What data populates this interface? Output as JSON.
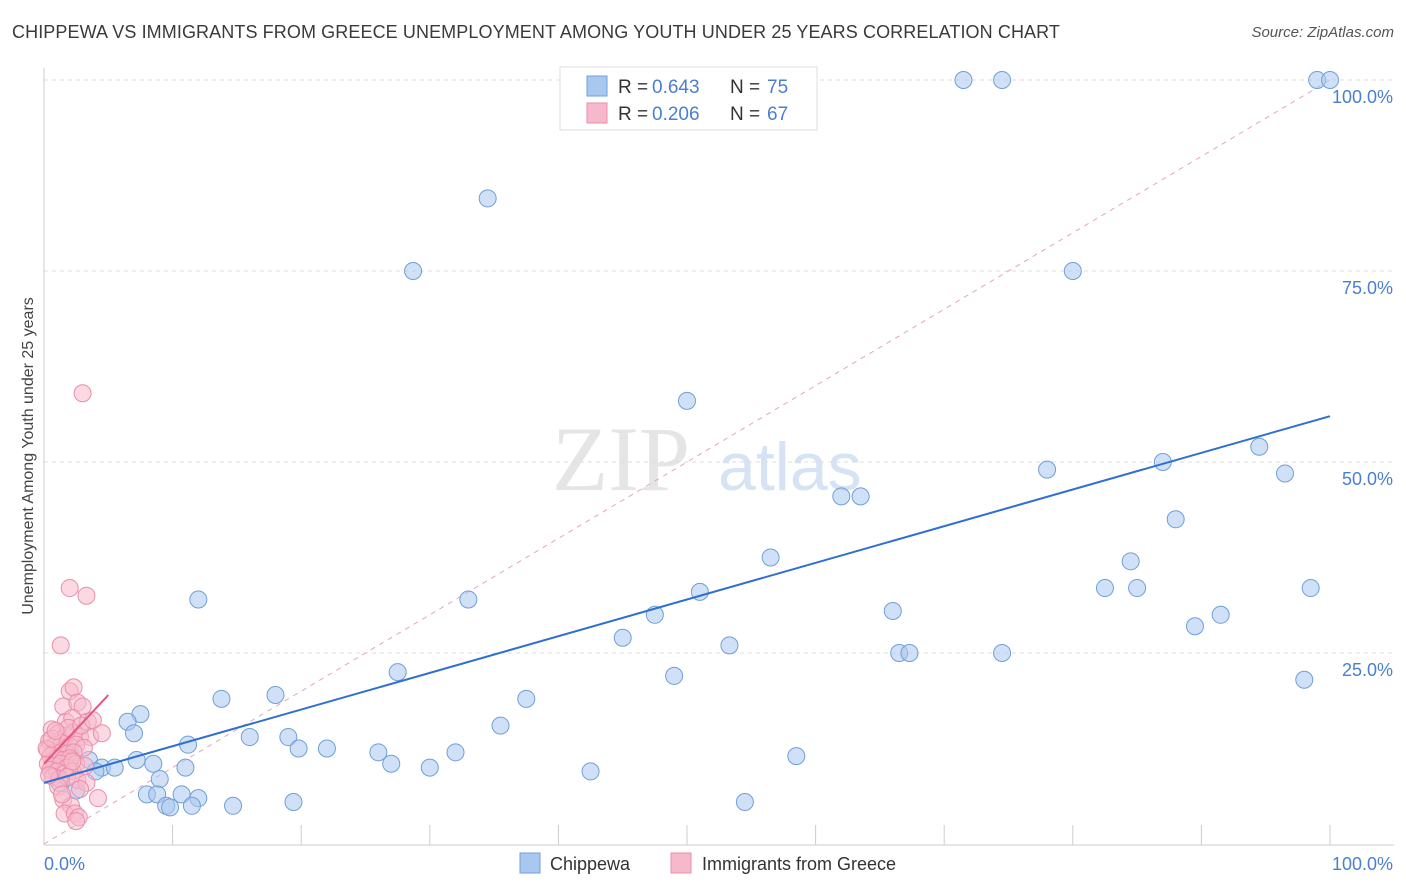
{
  "header": {
    "title": "CHIPPEWA VS IMMIGRANTS FROM GREECE UNEMPLOYMENT AMONG YOUTH UNDER 25 YEARS CORRELATION CHART",
    "source": "Source: ZipAtlas.com"
  },
  "watermark": {
    "zip": "ZIP",
    "atlas": "atlas"
  },
  "legend_top": [
    {
      "r_label": "R = ",
      "r_value": "0.643",
      "n_label": "N = ",
      "n_value": "75"
    },
    {
      "r_label": "R = ",
      "r_value": "0.206",
      "n_label": "N = ",
      "n_value": "67"
    }
  ],
  "colors": {
    "chippewa_fill": "#a9c8f0",
    "chippewa_stroke": "#6f9fd8",
    "chippewa_line": "#2f6fcf",
    "greece_fill": "#f6b9cb",
    "greece_stroke": "#ec8dab",
    "greece_line": "#e8557f",
    "axis_text": "#4a7fd0",
    "grid": "#dddddd"
  },
  "chart_data": {
    "type": "scatter",
    "title": "CHIPPEWA VS IMMIGRANTS FROM GREECE UNEMPLOYMENT AMONG YOUTH UNDER 25 YEARS CORRELATION CHART",
    "xlabel": "",
    "ylabel": "Unemployment Among Youth under 25 years",
    "xlim": [
      0,
      100
    ],
    "ylim": [
      0,
      100
    ],
    "x_tick_labels": [
      "0.0%",
      "100.0%"
    ],
    "y_tick_labels": [
      "25.0%",
      "50.0%",
      "75.0%",
      "100.0%"
    ],
    "y_ticks": [
      25,
      50,
      75,
      100
    ],
    "legend": [
      "Chippewa",
      "Immigrants from Greece"
    ],
    "series": [
      {
        "name": "Chippewa",
        "r": 0.643,
        "n": 75,
        "trend": {
          "x0": 0,
          "y0": 8,
          "x1": 100,
          "y1": 56
        },
        "points": [
          [
            71.5,
            100
          ],
          [
            74.5,
            100
          ],
          [
            99,
            100
          ],
          [
            100,
            100
          ],
          [
            34.5,
            84.5
          ],
          [
            28.7,
            75
          ],
          [
            80,
            75
          ],
          [
            50,
            58
          ],
          [
            78,
            49
          ],
          [
            87,
            50
          ],
          [
            94.5,
            52
          ],
          [
            96.5,
            48.5
          ],
          [
            62,
            45.5
          ],
          [
            63.5,
            45.5
          ],
          [
            88,
            42.5
          ],
          [
            84.5,
            37
          ],
          [
            56.5,
            37.5
          ],
          [
            82.5,
            33.5
          ],
          [
            85,
            33.5
          ],
          [
            98.5,
            33.5
          ],
          [
            51,
            33
          ],
          [
            33,
            32
          ],
          [
            12,
            32
          ],
          [
            47.5,
            30
          ],
          [
            66,
            30.5
          ],
          [
            91.5,
            30
          ],
          [
            89.5,
            28.5
          ],
          [
            45,
            27
          ],
          [
            53.3,
            26
          ],
          [
            66.5,
            25
          ],
          [
            67.3,
            25
          ],
          [
            74.5,
            25
          ],
          [
            98,
            21.5
          ],
          [
            49,
            22
          ],
          [
            27.5,
            22.5
          ],
          [
            18,
            19.5
          ],
          [
            37.5,
            19
          ],
          [
            13.8,
            19
          ],
          [
            7.5,
            17
          ],
          [
            6.5,
            16
          ],
          [
            7,
            14.5
          ],
          [
            16,
            14
          ],
          [
            19,
            14
          ],
          [
            11.2,
            13
          ],
          [
            19.8,
            12.5
          ],
          [
            22,
            12.5
          ],
          [
            35.5,
            15.5
          ],
          [
            32,
            12
          ],
          [
            2,
            12
          ],
          [
            3.5,
            11
          ],
          [
            4.5,
            10
          ],
          [
            5.5,
            10
          ],
          [
            4,
            9.5
          ],
          [
            7.2,
            11
          ],
          [
            8.5,
            10.5
          ],
          [
            11,
            10
          ],
          [
            9,
            8.5
          ],
          [
            8,
            6.5
          ],
          [
            8.8,
            6.5
          ],
          [
            10.7,
            6.5
          ],
          [
            12,
            6
          ],
          [
            9.5,
            5
          ],
          [
            11.5,
            5
          ],
          [
            14.7,
            5
          ],
          [
            19.4,
            5.5
          ],
          [
            27,
            10.5
          ],
          [
            26,
            12
          ],
          [
            30,
            10
          ],
          [
            42.5,
            9.5
          ],
          [
            58.5,
            11.5
          ],
          [
            54.5,
            5.5
          ],
          [
            2.5,
            7
          ],
          [
            1.2,
            8
          ],
          [
            0.8,
            11
          ],
          [
            9.8,
            4.8
          ]
        ]
      },
      {
        "name": "Immigrants from Greece",
        "r": 0.206,
        "n": 67,
        "trend": {
          "x0": 0,
          "y0": 10.5,
          "x1": 5,
          "y1": 19.5
        },
        "points": [
          [
            3,
            59
          ],
          [
            2,
            33.5
          ],
          [
            3.3,
            32.5
          ],
          [
            1.3,
            26
          ],
          [
            2,
            20
          ],
          [
            2.3,
            20.5
          ],
          [
            1.5,
            18
          ],
          [
            2.6,
            18.5
          ],
          [
            3,
            18
          ],
          [
            1.7,
            16
          ],
          [
            2.2,
            16.5
          ],
          [
            3.4,
            16
          ],
          [
            0.6,
            15
          ],
          [
            1.1,
            14.5
          ],
          [
            1.7,
            14.2
          ],
          [
            2.3,
            14.6
          ],
          [
            2.8,
            14
          ],
          [
            3.6,
            14
          ],
          [
            0.4,
            13.5
          ],
          [
            0.9,
            13
          ],
          [
            1.4,
            13.2
          ],
          [
            2,
            12.8
          ],
          [
            2.5,
            13
          ],
          [
            3.1,
            12.6
          ],
          [
            0.3,
            12.3
          ],
          [
            0.8,
            12
          ],
          [
            1.3,
            12
          ],
          [
            1.8,
            11.8
          ],
          [
            2.3,
            12
          ],
          [
            0.5,
            11.5
          ],
          [
            1,
            11.2
          ],
          [
            1.5,
            11
          ],
          [
            2,
            11.2
          ],
          [
            0.3,
            10.5
          ],
          [
            0.8,
            10.2
          ],
          [
            1.3,
            10.5
          ],
          [
            1.8,
            10
          ],
          [
            2.5,
            10.5
          ],
          [
            0.5,
            9.7
          ],
          [
            1,
            9.5
          ],
          [
            1.6,
            9.2
          ],
          [
            2.2,
            9.5
          ],
          [
            0.7,
            8.8
          ],
          [
            1.2,
            8.5
          ],
          [
            1.8,
            8.8
          ],
          [
            2.6,
            8.4
          ],
          [
            3.3,
            8
          ],
          [
            1.1,
            7.5
          ],
          [
            2.8,
            7.2
          ],
          [
            1.5,
            5.8
          ],
          [
            2.1,
            5
          ],
          [
            4.2,
            6
          ],
          [
            1.6,
            4
          ],
          [
            2.4,
            4
          ],
          [
            2.7,
            3.5
          ],
          [
            2.5,
            3
          ],
          [
            0.2,
            12.5
          ],
          [
            0.6,
            13.8
          ],
          [
            1.9,
            15.2
          ],
          [
            2.9,
            15.5
          ],
          [
            3.8,
            16.2
          ],
          [
            4.5,
            14.5
          ],
          [
            0.4,
            9
          ],
          [
            1.4,
            6.5
          ],
          [
            3.2,
            10.2
          ],
          [
            0.9,
            14.8
          ],
          [
            2.2,
            10.8
          ]
        ]
      }
    ]
  }
}
